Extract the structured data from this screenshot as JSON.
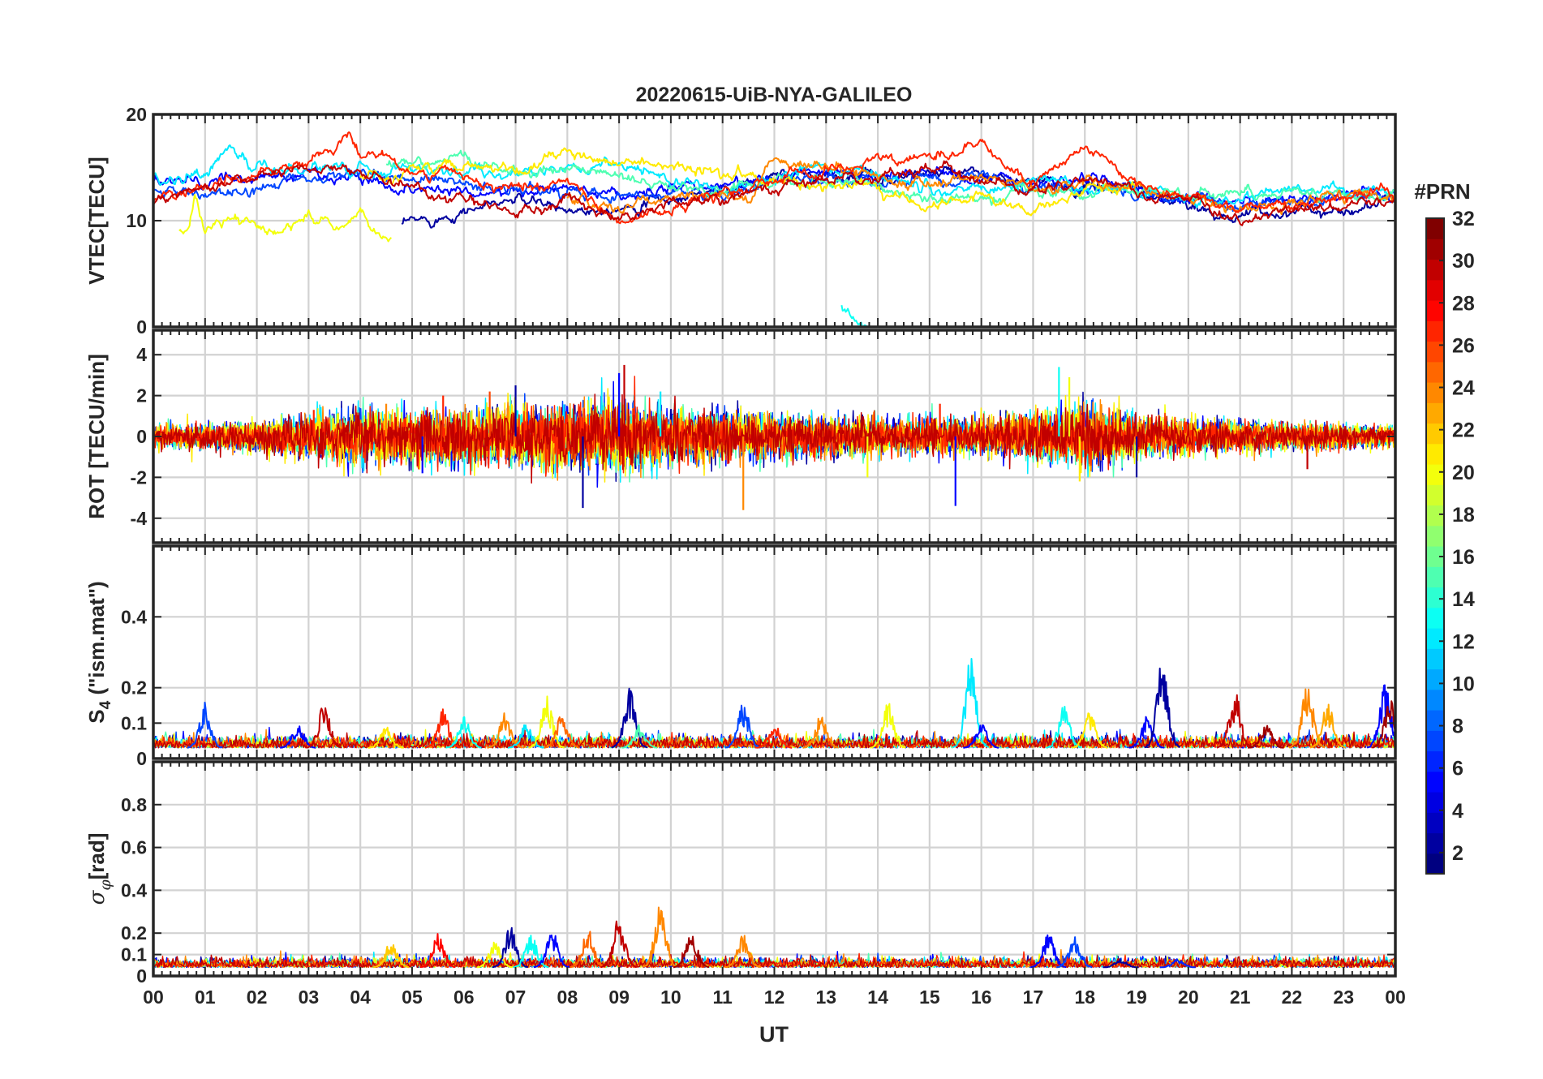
{
  "figure": {
    "title": "20220615-UiB-NYA-GALILEO",
    "xlabel": "UT",
    "x_ticks": [
      "00",
      "01",
      "02",
      "03",
      "04",
      "05",
      "06",
      "07",
      "08",
      "09",
      "10",
      "11",
      "12",
      "13",
      "14",
      "15",
      "16",
      "17",
      "18",
      "19",
      "20",
      "21",
      "22",
      "23",
      "00"
    ]
  },
  "colorbar": {
    "title": "#PRN",
    "range": [
      1,
      32
    ],
    "tick_labels": [
      "2",
      "4",
      "6",
      "8",
      "10",
      "12",
      "14",
      "16",
      "18",
      "20",
      "22",
      "24",
      "26",
      "28",
      "30",
      "32"
    ],
    "colormap": "jet",
    "levels": 32
  },
  "chart_data": [
    {
      "type": "line",
      "panel": "vtec",
      "ylabel": "VTEC[TECU]",
      "ylim": [
        0,
        20
      ],
      "yticks": [
        0,
        10,
        20
      ],
      "ytick_labels": [
        "0",
        "10",
        "20"
      ],
      "xlim": [
        0,
        24
      ],
      "series": [
        {
          "name": "PRN 2",
          "prn": 2,
          "x": [
            4.8,
            6,
            7,
            8,
            9,
            10,
            11,
            12,
            13,
            14,
            15,
            16,
            17,
            18,
            19,
            20,
            21,
            22,
            23,
            24
          ],
          "values": [
            9.5,
            11,
            12,
            11,
            11.5,
            12,
            13,
            14,
            14.5,
            14,
            14.5,
            14,
            13.5,
            13,
            13,
            11,
            10.5,
            11,
            11,
            12
          ]
        },
        {
          "name": "PRN 5",
          "prn": 5,
          "x": [
            0,
            1,
            2,
            3,
            4,
            5,
            6,
            7,
            8,
            9,
            10,
            11,
            12,
            13,
            14,
            15,
            16,
            17,
            18,
            19,
            20,
            21,
            22,
            23,
            24
          ],
          "values": [
            14,
            13.5,
            14,
            14.5,
            14,
            13,
            13,
            12.5,
            13,
            12,
            13,
            13.5,
            14,
            14.5,
            14,
            14.5,
            14,
            13.5,
            14,
            13,
            12,
            12,
            12,
            12.5,
            12
          ]
        },
        {
          "name": "PRN 7",
          "prn": 7,
          "x": [
            0,
            1,
            2,
            3,
            4,
            5,
            6,
            7,
            8,
            9,
            10,
            11,
            12,
            13,
            14,
            15,
            16,
            17,
            18,
            19,
            20,
            21,
            22,
            23,
            24
          ],
          "values": [
            13,
            12.5,
            13,
            14,
            14.5,
            14,
            13.5,
            13,
            12.5,
            12.5,
            13,
            12.5,
            13.5,
            14,
            13.5,
            14,
            14,
            13,
            13,
            12.5,
            12,
            11.5,
            12,
            12,
            12
          ]
        },
        {
          "name": "PRN 12",
          "prn": 12,
          "x": [
            0,
            1,
            1.4,
            2,
            3,
            4,
            5,
            6,
            7,
            8,
            9,
            10,
            11,
            12,
            13,
            14,
            15,
            16,
            17,
            18,
            19,
            20,
            21,
            22,
            23,
            24
          ],
          "values": [
            14.5,
            14,
            17,
            14.5,
            15,
            15,
            15,
            14.5,
            14,
            15,
            15,
            14,
            13,
            14,
            15,
            14.5,
            13,
            12.5,
            14,
            13,
            13,
            12.5,
            12,
            13,
            13,
            12
          ]
        },
        {
          "name": "PRN 13",
          "prn": 13,
          "x": [
            13.3,
            13.6,
            13.8
          ],
          "values": [
            2,
            0.8,
            0.3
          ]
        },
        {
          "name": "PRN 15",
          "prn": 15,
          "x": [
            4.5,
            5,
            6,
            7,
            8,
            9,
            10,
            11,
            12,
            13,
            14,
            15,
            16,
            17,
            18,
            19,
            20,
            21,
            22,
            23,
            24
          ],
          "values": [
            15.5,
            15.5,
            16,
            14.5,
            15,
            14,
            13.5,
            13,
            13.5,
            14,
            13,
            12,
            12,
            13,
            12.5,
            13,
            12.5,
            12.5,
            13,
            12.5,
            12
          ]
        },
        {
          "name": "PRN 20",
          "prn": 20,
          "x": [
            0.5,
            0.7,
            0.8,
            1,
            1.5,
            2,
            2.5,
            3,
            3.5,
            3.8,
            4,
            4.3,
            4.6
          ],
          "values": [
            9,
            9,
            12,
            9,
            10.5,
            9,
            8.8,
            10.5,
            9.5,
            10,
            11.5,
            8.5,
            8.5
          ]
        },
        {
          "name": "PRN 21",
          "prn": 21,
          "x": [
            4,
            5,
            6,
            7,
            7.8,
            14,
            15,
            16,
            17,
            18,
            19
          ],
          "values": [
            14,
            15,
            15,
            14.5,
            16,
            13,
            11.5,
            12.5,
            10.5,
            13,
            13.5
          ]
        },
        {
          "name": "PRN 24",
          "prn": 24,
          "x": [
            8,
            9,
            10,
            11,
            11.5,
            12,
            13,
            14,
            15,
            16,
            17,
            18,
            19,
            20,
            21,
            22,
            23,
            24
          ],
          "values": [
            12,
            11,
            12,
            12.5,
            12,
            16,
            15,
            14,
            13.5,
            14,
            13,
            13.5,
            13,
            12,
            11,
            11.5,
            12,
            12.5
          ]
        },
        {
          "name": "PRN 27",
          "prn": 27,
          "x": [
            0,
            1,
            2,
            3,
            3.8,
            4,
            5,
            6,
            7,
            8,
            9,
            10,
            11,
            12,
            13,
            14,
            15,
            16,
            16.5,
            17,
            18,
            19,
            20,
            21,
            22,
            23,
            24
          ],
          "values": [
            12,
            13,
            14.5,
            15.5,
            18,
            16.5,
            15,
            14,
            13,
            13.5,
            10,
            11,
            12.5,
            13.5,
            14.5,
            15.5,
            16,
            17.5,
            15,
            13,
            17,
            13.5,
            12,
            11,
            11.5,
            12,
            12.5
          ]
        },
        {
          "name": "PRN 30",
          "prn": 30,
          "x": [
            0,
            1,
            2,
            3,
            4,
            5,
            6,
            7,
            8,
            9,
            10,
            11,
            12,
            13,
            14,
            15,
            16,
            17,
            18,
            19,
            20,
            21,
            22,
            23,
            24
          ],
          "values": [
            11.5,
            13.5,
            14,
            15,
            14.5,
            13,
            12,
            10.5,
            12,
            10,
            11.5,
            12,
            13,
            14,
            14,
            15,
            14,
            13,
            14,
            12.5,
            12,
            10,
            11,
            11.5,
            12
          ]
        }
      ]
    },
    {
      "type": "line",
      "panel": "rot",
      "ylabel": "ROT [TECU/min]",
      "ylim": [
        -5.2,
        5.2
      ],
      "yticks": [
        -4,
        -2,
        0,
        2,
        4
      ],
      "ytick_labels": [
        "-4",
        "-2",
        "0",
        "2",
        "4"
      ],
      "xlim": [
        0,
        24
      ],
      "envelope": {
        "x": [
          0,
          2,
          4,
          5,
          7,
          9,
          10,
          12,
          14,
          16,
          17,
          18,
          19,
          20,
          22,
          24
        ],
        "amplitude": [
          0.5,
          0.8,
          1.4,
          1.3,
          1.6,
          1.8,
          1.4,
          1.2,
          0.9,
          0.9,
          1.2,
          1.6,
          1.1,
          0.9,
          0.7,
          0.5
        ]
      },
      "spikes": [
        {
          "x": 3.1,
          "y": 1.3,
          "prn": 27
        },
        {
          "x": 4.5,
          "y": 1.6,
          "prn": 24
        },
        {
          "x": 5.2,
          "y": -1.8,
          "prn": 5
        },
        {
          "x": 5.6,
          "y": 2.0,
          "prn": 27
        },
        {
          "x": 6.5,
          "y": 2.2,
          "prn": 26
        },
        {
          "x": 7.0,
          "y": 2.5,
          "prn": 2
        },
        {
          "x": 8.3,
          "y": -3.5,
          "prn": 2
        },
        {
          "x": 9.0,
          "y": 3.1,
          "prn": 5
        },
        {
          "x": 9.1,
          "y": 3.5,
          "prn": 30
        },
        {
          "x": 9.8,
          "y": 2.2,
          "prn": 12
        },
        {
          "x": 11.4,
          "y": -3.6,
          "prn": 24
        },
        {
          "x": 13.8,
          "y": -2.0,
          "prn": 20
        },
        {
          "x": 15.5,
          "y": -3.4,
          "prn": 5
        },
        {
          "x": 15.2,
          "y": 1.6,
          "prn": 27
        },
        {
          "x": 17.5,
          "y": 3.4,
          "prn": 13
        },
        {
          "x": 17.7,
          "y": 2.9,
          "prn": 20
        },
        {
          "x": 17.9,
          "y": -2.2,
          "prn": 21
        },
        {
          "x": 19.0,
          "y": -2.0,
          "prn": 2
        },
        {
          "x": 22.3,
          "y": -1.6,
          "prn": 30
        }
      ]
    },
    {
      "type": "line",
      "panel": "s4",
      "ylabel": "S4 (\"ism.mat\")",
      "ylim": [
        0,
        0.6
      ],
      "yticks": [
        0,
        0.1,
        0.2,
        0.4
      ],
      "ytick_labels": [
        "0",
        "0.1",
        "0.2",
        "0.4"
      ],
      "xlim": [
        0,
        24
      ],
      "bursts": [
        {
          "x": 1.0,
          "y": 0.16,
          "prn": 7
        },
        {
          "x": 2.8,
          "y": 0.1,
          "prn": 5
        },
        {
          "x": 3.3,
          "y": 0.16,
          "prn": 30
        },
        {
          "x": 4.5,
          "y": 0.09,
          "prn": 21
        },
        {
          "x": 5.6,
          "y": 0.14,
          "prn": 27
        },
        {
          "x": 6.0,
          "y": 0.12,
          "prn": 13
        },
        {
          "x": 6.8,
          "y": 0.13,
          "prn": 24
        },
        {
          "x": 7.2,
          "y": 0.1,
          "prn": 12
        },
        {
          "x": 7.6,
          "y": 0.18,
          "prn": 20
        },
        {
          "x": 7.9,
          "y": 0.13,
          "prn": 25
        },
        {
          "x": 9.2,
          "y": 0.2,
          "prn": 2
        },
        {
          "x": 9.4,
          "y": 0.1,
          "prn": 15
        },
        {
          "x": 11.4,
          "y": 0.16,
          "prn": 7
        },
        {
          "x": 12.0,
          "y": 0.1,
          "prn": 27
        },
        {
          "x": 12.9,
          "y": 0.13,
          "prn": 24
        },
        {
          "x": 14.2,
          "y": 0.16,
          "prn": 20
        },
        {
          "x": 15.8,
          "y": 0.29,
          "prn": 12
        },
        {
          "x": 16.0,
          "y": 0.1,
          "prn": 5
        },
        {
          "x": 17.6,
          "y": 0.15,
          "prn": 13
        },
        {
          "x": 18.1,
          "y": 0.14,
          "prn": 21
        },
        {
          "x": 19.2,
          "y": 0.12,
          "prn": 5
        },
        {
          "x": 19.5,
          "y": 0.28,
          "prn": 2
        },
        {
          "x": 20.9,
          "y": 0.19,
          "prn": 30
        },
        {
          "x": 21.5,
          "y": 0.1,
          "prn": 31
        },
        {
          "x": 22.3,
          "y": 0.22,
          "prn": 24
        },
        {
          "x": 22.7,
          "y": 0.16,
          "prn": 23
        },
        {
          "x": 23.8,
          "y": 0.21,
          "prn": 5
        },
        {
          "x": 23.9,
          "y": 0.17,
          "prn": 31
        }
      ],
      "baseline": 0.03
    },
    {
      "type": "line",
      "panel": "sigma_phi",
      "ylabel": "σφ[rad]",
      "ylim": [
        0,
        1.0
      ],
      "yticks": [
        0,
        0.1,
        0.2,
        0.4,
        0.6,
        0.8
      ],
      "ytick_labels": [
        "0",
        "0.1",
        "0.2",
        "0.4",
        "0.6",
        "0.8"
      ],
      "xlim": [
        0,
        24
      ],
      "bursts": [
        {
          "x": 4.6,
          "y": 0.17,
          "prn": 22
        },
        {
          "x": 5.5,
          "y": 0.2,
          "prn": 28
        },
        {
          "x": 6.6,
          "y": 0.16,
          "prn": 20
        },
        {
          "x": 6.9,
          "y": 0.23,
          "prn": 2
        },
        {
          "x": 7.3,
          "y": 0.2,
          "prn": 13
        },
        {
          "x": 7.7,
          "y": 0.22,
          "prn": 5
        },
        {
          "x": 8.4,
          "y": 0.22,
          "prn": 25
        },
        {
          "x": 9.0,
          "y": 0.28,
          "prn": 30
        },
        {
          "x": 9.8,
          "y": 0.35,
          "prn": 24
        },
        {
          "x": 10.4,
          "y": 0.2,
          "prn": 31
        },
        {
          "x": 11.4,
          "y": 0.2,
          "prn": 24
        },
        {
          "x": 17.3,
          "y": 0.2,
          "prn": 5
        },
        {
          "x": 17.8,
          "y": 0.2,
          "prn": 7
        },
        {
          "x": 18.7,
          "y": 0.08,
          "prn": 2
        },
        {
          "x": 19.8,
          "y": 0.08,
          "prn": 6
        }
      ],
      "baseline": 0.04
    }
  ]
}
